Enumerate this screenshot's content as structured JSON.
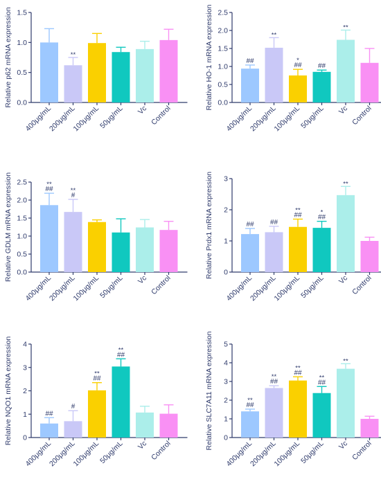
{
  "colors": {
    "axis": "#2e3a6b",
    "text": "#2e3a6b",
    "bars": [
      "#9dc8ff",
      "#c9c8f7",
      "#fad000",
      "#10c8bf",
      "#abeeea",
      "#f990f4"
    ]
  },
  "chart_data": [
    {
      "type": "bar",
      "title": "",
      "xlabel": "",
      "ylabel": "Relative p62 mRNA expression",
      "categories": [
        "400μg/mL",
        "200μg/mL",
        "100μg/mL",
        "50μg/mL",
        "Vc",
        "Control"
      ],
      "values": [
        1.0,
        0.62,
        0.99,
        0.84,
        0.89,
        1.04
      ],
      "errors": [
        0.23,
        0.13,
        0.16,
        0.08,
        0.13,
        0.18
      ],
      "annotations": [
        [
          "",
          ""
        ],
        [
          "**",
          ""
        ],
        [
          "",
          ""
        ],
        [
          "",
          ""
        ],
        [
          "",
          ""
        ],
        [
          "",
          ""
        ]
      ],
      "ylim": [
        0,
        1.5
      ],
      "yticks": [
        "0.0",
        "0.5",
        "1.0",
        "1.5"
      ],
      "grid": false
    },
    {
      "type": "bar",
      "title": "",
      "xlabel": "",
      "ylabel": "Relative HO-1 mRNA expression",
      "categories": [
        "400μg/mL",
        "200μg/mL",
        "100μg/mL",
        "50μg/mL",
        "Vc",
        "Control"
      ],
      "values": [
        0.94,
        1.52,
        0.75,
        0.85,
        1.74,
        1.1
      ],
      "errors": [
        0.1,
        0.28,
        0.17,
        0.05,
        0.27,
        0.4
      ],
      "annotations": [
        [
          "",
          "##"
        ],
        [
          "**",
          ""
        ],
        [
          "*",
          "##"
        ],
        [
          "",
          "##"
        ],
        [
          "**",
          ""
        ],
        [
          "",
          ""
        ]
      ],
      "ylim": [
        0,
        2.5
      ],
      "yticks": [
        "0.0",
        "0.5",
        "1.0",
        "1.5",
        "2.0",
        "2.5"
      ],
      "grid": false
    },
    {
      "type": "bar",
      "title": "",
      "xlabel": "",
      "ylabel": "Relative GDLM mRNA expression",
      "categories": [
        "400μg/mL",
        "200μg/mL",
        "100μg/mL",
        "50μg/mL",
        "Vc",
        "Control"
      ],
      "values": [
        1.86,
        1.67,
        1.39,
        1.1,
        1.24,
        1.17
      ],
      "errors": [
        0.33,
        0.35,
        0.06,
        0.38,
        0.22,
        0.24
      ],
      "annotations": [
        [
          "**",
          "##"
        ],
        [
          "**",
          "#"
        ],
        [
          "",
          ""
        ],
        [
          "",
          ""
        ],
        [
          "",
          ""
        ],
        [
          "",
          ""
        ]
      ],
      "ylim": [
        0,
        2.5
      ],
      "yticks": [
        "0.0",
        "0.5",
        "1.0",
        "1.5",
        "2.0",
        "2.5"
      ],
      "grid": false
    },
    {
      "type": "bar",
      "title": "",
      "xlabel": "",
      "ylabel": "Relative Prdx1 mRNA expression",
      "categories": [
        "400μg/mL",
        "200μg/mL",
        "100μg/mL",
        "50μg/mL",
        "Vc",
        "Control"
      ],
      "values": [
        1.22,
        1.28,
        1.45,
        1.42,
        2.47,
        1.0
      ],
      "errors": [
        0.18,
        0.19,
        0.25,
        0.21,
        0.28,
        0.12
      ],
      "annotations": [
        [
          "",
          "##"
        ],
        [
          "",
          "##"
        ],
        [
          "**",
          "##"
        ],
        [
          "*",
          "##"
        ],
        [
          "**",
          ""
        ],
        [
          "",
          ""
        ]
      ],
      "ylim": [
        0,
        3
      ],
      "yticks": [
        "0",
        "1",
        "2",
        "3"
      ],
      "grid": false
    },
    {
      "type": "bar",
      "title": "",
      "xlabel": "",
      "ylabel": "Relative NQO1 mRNA expression",
      "categories": [
        "400μg/mL",
        "200μg/mL",
        "100μg/mL",
        "50μg/mL",
        "Vc",
        "Control"
      ],
      "values": [
        0.6,
        0.7,
        2.02,
        3.04,
        1.07,
        1.02
      ],
      "errors": [
        0.25,
        0.45,
        0.33,
        0.33,
        0.27,
        0.38
      ],
      "annotations": [
        [
          "",
          "##"
        ],
        [
          "",
          "#"
        ],
        [
          "**",
          "##"
        ],
        [
          "**",
          "##"
        ],
        [
          "",
          ""
        ],
        [
          "",
          ""
        ]
      ],
      "ylim": [
        0,
        4
      ],
      "yticks": [
        "0",
        "1",
        "2",
        "3",
        "4"
      ],
      "grid": false
    },
    {
      "type": "bar",
      "title": "",
      "xlabel": "",
      "ylabel": "Relative SLC7A11 mRNA expression",
      "categories": [
        "400μg/mL",
        "200μg/mL",
        "100μg/mL",
        "50μg/mL",
        "Vc",
        "Control"
      ],
      "values": [
        1.4,
        2.65,
        3.05,
        2.38,
        3.68,
        1.0
      ],
      "errors": [
        0.12,
        0.12,
        0.2,
        0.35,
        0.27,
        0.14
      ],
      "annotations": [
        [
          "**",
          "##"
        ],
        [
          "**",
          "##"
        ],
        [
          "**",
          "##"
        ],
        [
          "**",
          "##"
        ],
        [
          "**",
          ""
        ],
        [
          "",
          ""
        ]
      ],
      "ylim": [
        0,
        5
      ],
      "yticks": [
        "0",
        "1",
        "2",
        "3",
        "4",
        "5"
      ],
      "grid": false
    }
  ]
}
